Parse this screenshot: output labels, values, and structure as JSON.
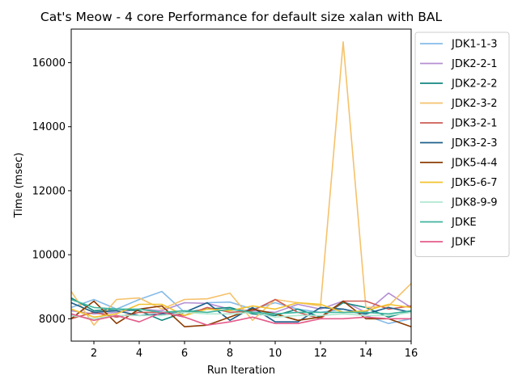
{
  "chart_data": {
    "type": "line",
    "title": "Cat's Meow - 4 core Performance for default size xalan with BAL",
    "xlabel": "Run Iteration",
    "ylabel": "Time (msec)",
    "xlim": [
      1,
      16
    ],
    "ylim": [
      7300,
      17050
    ],
    "x_ticks": [
      2,
      4,
      6,
      8,
      10,
      12,
      14,
      16
    ],
    "y_ticks": [
      8000,
      10000,
      12000,
      14000,
      16000
    ],
    "grid": false,
    "legend_position": "outside-right",
    "x": [
      1,
      2,
      3,
      4,
      5,
      6,
      7,
      8,
      9,
      10,
      11,
      12,
      13,
      14,
      15,
      16
    ],
    "series": [
      {
        "name": "JDK1-1-3",
        "color": "#85bbe8",
        "values": [
          8350,
          8600,
          8300,
          8600,
          8850,
          8200,
          8500,
          8520,
          8300,
          8500,
          8300,
          8200,
          8300,
          8100,
          7850,
          8000
        ]
      },
      {
        "name": "JDK2-2-1",
        "color": "#b48fd3",
        "values": [
          8250,
          8150,
          8200,
          8300,
          8250,
          8500,
          8480,
          8300,
          8250,
          8200,
          8450,
          8300,
          8550,
          8200,
          8800,
          8350
        ]
      },
      {
        "name": "JDK2-2-2",
        "color": "#12877f",
        "values": [
          8650,
          8250,
          8300,
          8250,
          7950,
          8200,
          8300,
          8350,
          8150,
          8100,
          8300,
          8050,
          8500,
          8350,
          8050,
          8250
        ]
      },
      {
        "name": "JDK2-3-2",
        "color": "#f5c26b",
        "values": [
          8850,
          7800,
          8600,
          8650,
          8300,
          8600,
          8620,
          8800,
          7950,
          8600,
          8500,
          8400,
          16650,
          8350,
          8400,
          9100
        ]
      },
      {
        "name": "JDK3-2-1",
        "color": "#cd5c55",
        "values": [
          8000,
          8200,
          8050,
          8200,
          8200,
          8100,
          8350,
          8200,
          8250,
          8600,
          8200,
          8000,
          8550,
          8550,
          8300,
          8400
        ]
      },
      {
        "name": "JDK3-2-3",
        "color": "#1d5f8a",
        "values": [
          8500,
          8200,
          8250,
          8100,
          8150,
          8200,
          8500,
          7950,
          8350,
          7900,
          7900,
          8350,
          8300,
          8150,
          8350,
          8200
        ]
      },
      {
        "name": "JDK5-4-4",
        "color": "#8c3b00",
        "values": [
          8000,
          8550,
          7850,
          8300,
          8400,
          7750,
          7800,
          8050,
          8300,
          8150,
          7950,
          8050,
          8550,
          8000,
          8000,
          7750
        ]
      },
      {
        "name": "JDK5-6-7",
        "color": "#f2c22e",
        "values": [
          8300,
          8050,
          8150,
          8450,
          8450,
          8100,
          8300,
          8250,
          8400,
          8300,
          8500,
          8450,
          8200,
          8250,
          8450,
          8350
        ]
      },
      {
        "name": "JDK8-9-9",
        "color": "#b0e8d0",
        "values": [
          8100,
          8000,
          8100,
          8100,
          8100,
          8200,
          8150,
          8150,
          8200,
          8050,
          8100,
          8100,
          8150,
          8100,
          8100,
          8200
        ]
      },
      {
        "name": "JDKE",
        "color": "#3eb59e",
        "values": [
          8600,
          8350,
          8300,
          8300,
          8200,
          8250,
          8200,
          8300,
          8200,
          8150,
          8200,
          8200,
          8200,
          8200,
          8150,
          8250
        ]
      },
      {
        "name": "JDKF",
        "color": "#e45c8b",
        "values": [
          8150,
          7950,
          8100,
          7900,
          8200,
          8050,
          7800,
          7900,
          8050,
          7850,
          7850,
          8000,
          8000,
          8050,
          8000,
          8000
        ]
      }
    ]
  }
}
